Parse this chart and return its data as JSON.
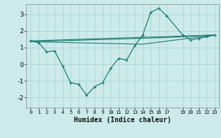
{
  "bg_color": "#cceaea",
  "line_color": "#1a7a6e",
  "grid_color": "#aad4d4",
  "xlabel": "Humidex (Indice chaleur)",
  "xlim": [
    -0.5,
    23.5
  ],
  "ylim": [
    -2.6,
    3.6
  ],
  "xticks": [
    0,
    1,
    2,
    3,
    4,
    5,
    6,
    7,
    8,
    9,
    10,
    11,
    12,
    13,
    14,
    15,
    16,
    17,
    19,
    20,
    21,
    22,
    23
  ],
  "yticks": [
    -2,
    -1,
    0,
    1,
    2,
    3
  ],
  "line1_x": [
    0,
    1,
    2,
    3,
    4,
    5,
    6,
    7,
    8,
    9,
    10,
    11,
    12,
    13,
    14,
    15,
    16,
    17,
    19,
    20,
    21,
    22,
    23
  ],
  "line1_y": [
    1.4,
    1.3,
    0.75,
    0.8,
    -0.1,
    -1.1,
    -1.2,
    -1.85,
    -1.35,
    -1.1,
    -0.25,
    0.35,
    0.25,
    1.1,
    1.75,
    3.1,
    3.35,
    2.9,
    1.75,
    1.45,
    1.55,
    1.65,
    1.75
  ],
  "line2_x": [
    0,
    23
  ],
  "line2_y": [
    1.4,
    1.75
  ],
  "line3_x": [
    0,
    17,
    23
  ],
  "line3_y": [
    1.35,
    1.6,
    1.75
  ],
  "line4_x": [
    0,
    14,
    23
  ],
  "line4_y": [
    1.35,
    1.2,
    1.75
  ]
}
